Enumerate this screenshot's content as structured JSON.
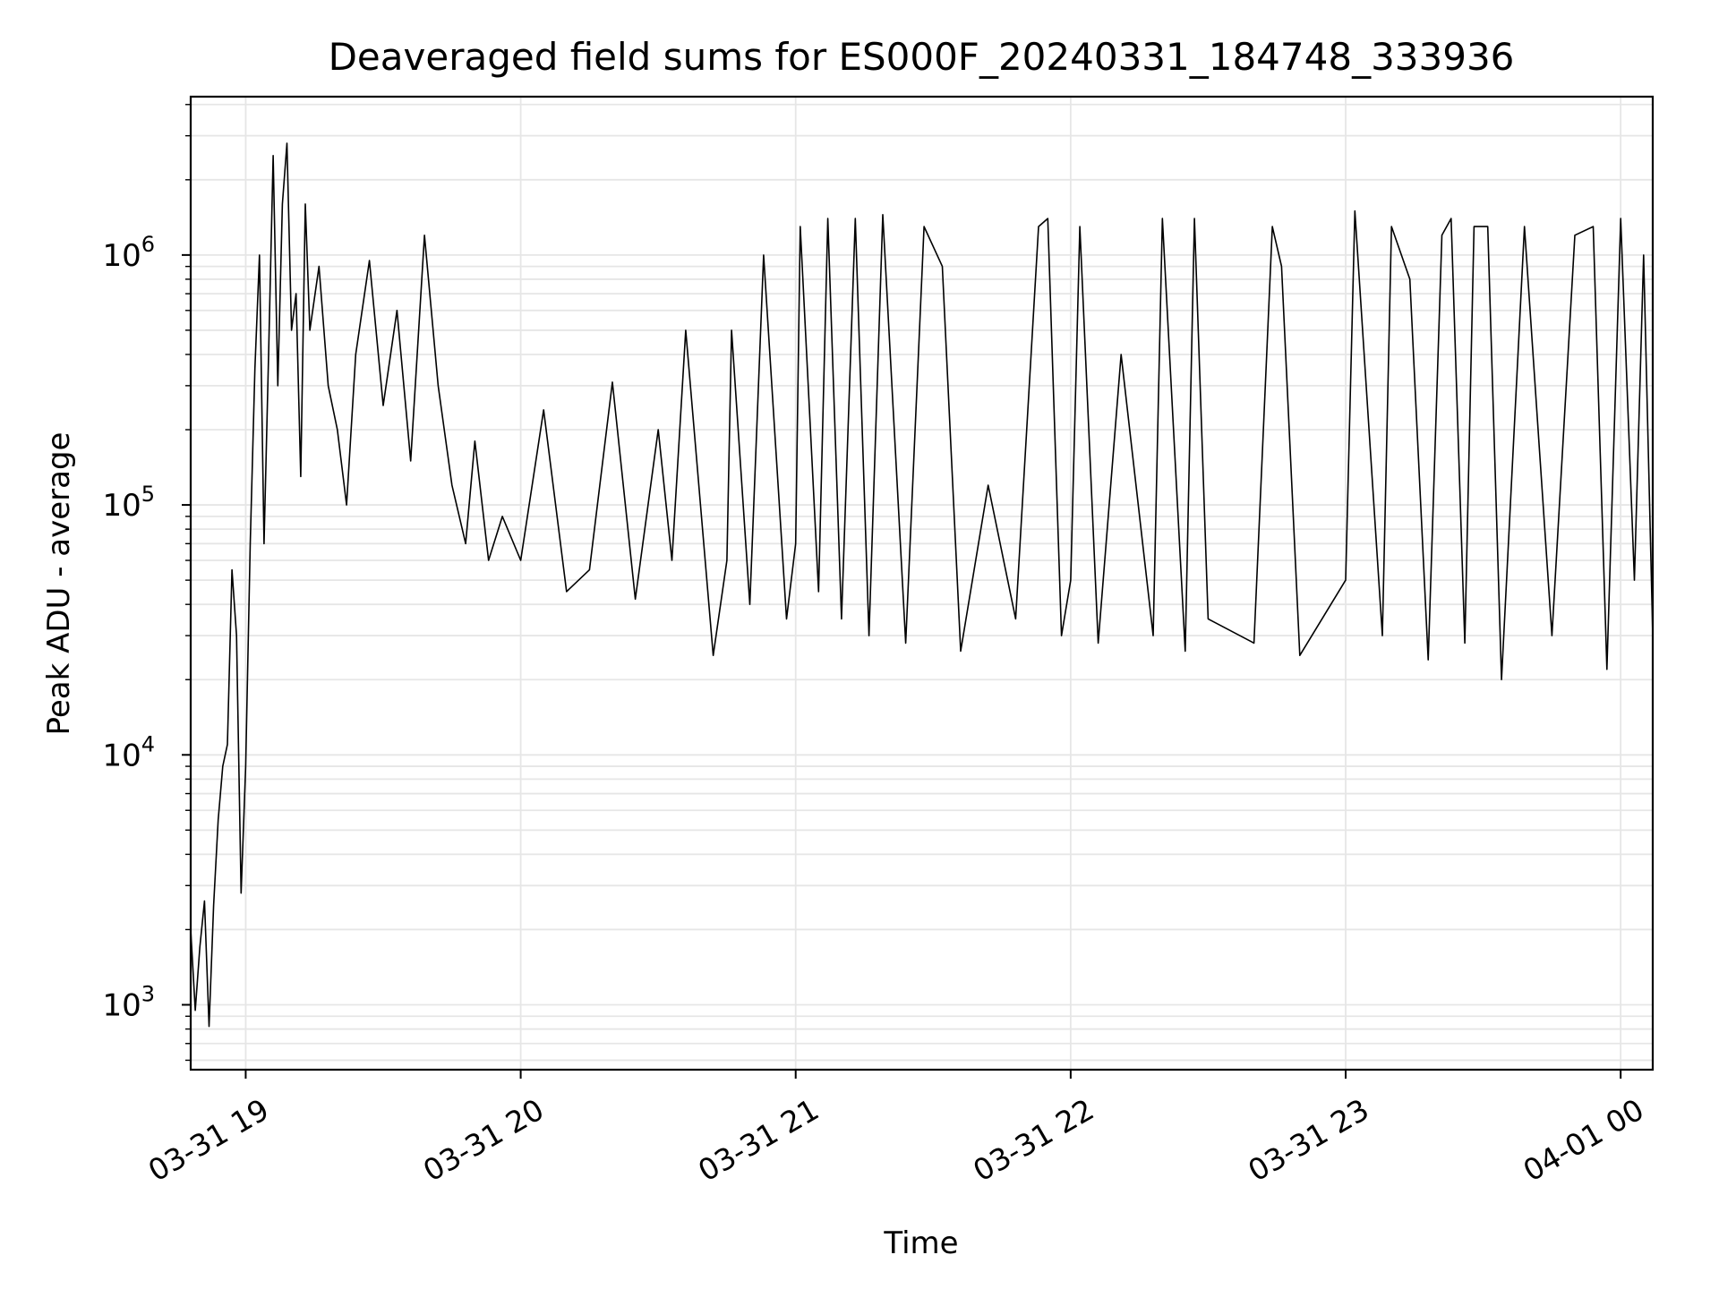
{
  "chart_data": {
    "type": "line",
    "title": "Deaveraged field sums for ES000F_20240331_184748_333936",
    "xlabel": "Time",
    "ylabel": "Peak ADU - average",
    "x_is_time": true,
    "xlim": [
      "2024-03-31 18:48",
      "2024-04-01 00:07"
    ],
    "ylim": [
      550,
      4300000
    ],
    "yscale": "log",
    "grid": true,
    "line_color": "#000000",
    "grid_color": "#e6e6e6",
    "x_ticks": [
      {
        "value": "2024-03-31 19:00",
        "label": "03-31 19"
      },
      {
        "value": "2024-03-31 20:00",
        "label": "03-31 20"
      },
      {
        "value": "2024-03-31 21:00",
        "label": "03-31 21"
      },
      {
        "value": "2024-03-31 22:00",
        "label": "03-31 22"
      },
      {
        "value": "2024-03-31 23:00",
        "label": "03-31 23"
      },
      {
        "value": "2024-04-01 00:00",
        "label": "04-01 00"
      }
    ],
    "y_ticks": [
      {
        "value": 1000,
        "base": "10",
        "exp": "3"
      },
      {
        "value": 10000,
        "base": "10",
        "exp": "4"
      },
      {
        "value": 100000,
        "base": "10",
        "exp": "5"
      },
      {
        "value": 1000000,
        "base": "10",
        "exp": "6"
      }
    ],
    "series": [
      {
        "values": [
          [
            "2024-03-31 18:48",
            2000
          ],
          [
            "2024-03-31 18:49",
            950
          ],
          [
            "2024-03-31 18:50",
            1700
          ],
          [
            "2024-03-31 18:51",
            2600
          ],
          [
            "2024-03-31 18:52",
            820
          ],
          [
            "2024-03-31 18:53",
            2500
          ],
          [
            "2024-03-31 18:54",
            5500
          ],
          [
            "2024-03-31 18:55",
            9000
          ],
          [
            "2024-03-31 18:56",
            11000
          ],
          [
            "2024-03-31 18:57",
            55000
          ],
          [
            "2024-03-31 18:58",
            30000
          ],
          [
            "2024-03-31 18:59",
            2800
          ],
          [
            "2024-03-31 19:00",
            9000
          ],
          [
            "2024-03-31 19:01",
            70000
          ],
          [
            "2024-03-31 19:02",
            350000
          ],
          [
            "2024-03-31 19:03",
            1000000
          ],
          [
            "2024-03-31 19:04",
            70000
          ],
          [
            "2024-03-31 19:05",
            400000
          ],
          [
            "2024-03-31 19:06",
            2500000
          ],
          [
            "2024-03-31 19:07",
            300000
          ],
          [
            "2024-03-31 19:08",
            1600000
          ],
          [
            "2024-03-31 19:09",
            2800000
          ],
          [
            "2024-03-31 19:10",
            500000
          ],
          [
            "2024-03-31 19:11",
            700000
          ],
          [
            "2024-03-31 19:12",
            130000
          ],
          [
            "2024-03-31 19:13",
            1600000
          ],
          [
            "2024-03-31 19:14",
            500000
          ],
          [
            "2024-03-31 19:16",
            900000
          ],
          [
            "2024-03-31 19:18",
            300000
          ],
          [
            "2024-03-31 19:20",
            200000
          ],
          [
            "2024-03-31 19:22",
            100000
          ],
          [
            "2024-03-31 19:24",
            400000
          ],
          [
            "2024-03-31 19:27",
            950000
          ],
          [
            "2024-03-31 19:30",
            250000
          ],
          [
            "2024-03-31 19:33",
            600000
          ],
          [
            "2024-03-31 19:36",
            150000
          ],
          [
            "2024-03-31 19:39",
            1200000
          ],
          [
            "2024-03-31 19:42",
            300000
          ],
          [
            "2024-03-31 19:45",
            120000
          ],
          [
            "2024-03-31 19:48",
            70000
          ],
          [
            "2024-03-31 19:50",
            180000
          ],
          [
            "2024-03-31 19:53",
            60000
          ],
          [
            "2024-03-31 19:56",
            90000
          ],
          [
            "2024-03-31 20:00",
            60000
          ],
          [
            "2024-03-31 20:05",
            240000
          ],
          [
            "2024-03-31 20:10",
            45000
          ],
          [
            "2024-03-31 20:15",
            55000
          ],
          [
            "2024-03-31 20:20",
            310000
          ],
          [
            "2024-03-31 20:25",
            42000
          ],
          [
            "2024-03-31 20:30",
            200000
          ],
          [
            "2024-03-31 20:33",
            60000
          ],
          [
            "2024-03-31 20:36",
            500000
          ],
          [
            "2024-03-31 20:42",
            25000
          ],
          [
            "2024-03-31 20:45",
            60000
          ],
          [
            "2024-03-31 20:46",
            500000
          ],
          [
            "2024-03-31 20:50",
            40000
          ],
          [
            "2024-03-31 20:53",
            1000000
          ],
          [
            "2024-03-31 20:58",
            35000
          ],
          [
            "2024-03-31 21:00",
            70000
          ],
          [
            "2024-03-31 21:01",
            1300000
          ],
          [
            "2024-03-31 21:05",
            45000
          ],
          [
            "2024-03-31 21:07",
            1400000
          ],
          [
            "2024-03-31 21:10",
            35000
          ],
          [
            "2024-03-31 21:13",
            1400000
          ],
          [
            "2024-03-31 21:16",
            30000
          ],
          [
            "2024-03-31 21:19",
            1450000
          ],
          [
            "2024-03-31 21:24",
            28000
          ],
          [
            "2024-03-31 21:28",
            1300000
          ],
          [
            "2024-03-31 21:32",
            900000
          ],
          [
            "2024-03-31 21:36",
            26000
          ],
          [
            "2024-03-31 21:42",
            120000
          ],
          [
            "2024-03-31 21:48",
            35000
          ],
          [
            "2024-03-31 21:53",
            1300000
          ],
          [
            "2024-03-31 21:55",
            1400000
          ],
          [
            "2024-03-31 21:58",
            30000
          ],
          [
            "2024-03-31 22:00",
            50000
          ],
          [
            "2024-03-31 22:02",
            1300000
          ],
          [
            "2024-03-31 22:06",
            28000
          ],
          [
            "2024-03-31 22:11",
            400000
          ],
          [
            "2024-03-31 22:18",
            30000
          ],
          [
            "2024-03-31 22:20",
            1400000
          ],
          [
            "2024-03-31 22:25",
            26000
          ],
          [
            "2024-03-31 22:27",
            1400000
          ],
          [
            "2024-03-31 22:30",
            35000
          ],
          [
            "2024-03-31 22:40",
            28000
          ],
          [
            "2024-03-31 22:44",
            1300000
          ],
          [
            "2024-03-31 22:46",
            900000
          ],
          [
            "2024-03-31 22:50",
            25000
          ],
          [
            "2024-03-31 23:00",
            50000
          ],
          [
            "2024-03-31 23:02",
            1500000
          ],
          [
            "2024-03-31 23:08",
            30000
          ],
          [
            "2024-03-31 23:10",
            1300000
          ],
          [
            "2024-03-31 23:14",
            800000
          ],
          [
            "2024-03-31 23:18",
            24000
          ],
          [
            "2024-03-31 23:21",
            1200000
          ],
          [
            "2024-03-31 23:23",
            1400000
          ],
          [
            "2024-03-31 23:26",
            28000
          ],
          [
            "2024-03-31 23:28",
            1300000
          ],
          [
            "2024-03-31 23:31",
            1300000
          ],
          [
            "2024-03-31 23:34",
            20000
          ],
          [
            "2024-03-31 23:39",
            1300000
          ],
          [
            "2024-03-31 23:45",
            30000
          ],
          [
            "2024-03-31 23:50",
            1200000
          ],
          [
            "2024-03-31 23:54",
            1300000
          ],
          [
            "2024-03-31 23:57",
            22000
          ],
          [
            "2024-04-01 00:00",
            1400000
          ],
          [
            "2024-04-01 00:03",
            50000
          ],
          [
            "2024-04-01 00:05",
            1000000
          ],
          [
            "2024-04-01 00:07",
            30000
          ]
        ]
      }
    ]
  }
}
